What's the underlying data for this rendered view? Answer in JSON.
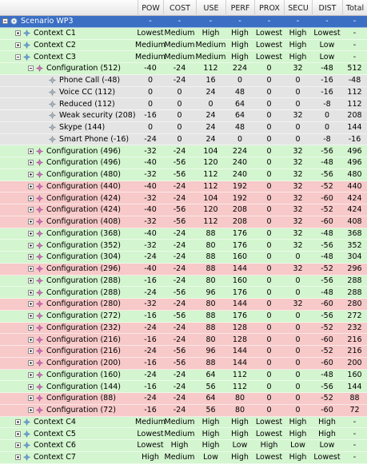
{
  "columns": [
    "POW",
    "COST",
    "USE",
    "PERF",
    "PROX",
    "SECU",
    "DIST",
    "Total"
  ],
  "colors": {
    "green": "#d3f5cf",
    "red": "#f7c9c9",
    "gray": "#e4e4e4",
    "selected": "#3a6fc4"
  },
  "rows": [
    {
      "label": "Scenario WP3",
      "level": 0,
      "exp": "minus",
      "icon": "scenario-icon",
      "bg": "selected",
      "cells": [
        "-",
        "-",
        "-",
        "-",
        "-",
        "-",
        "-",
        "-"
      ]
    },
    {
      "label": "Context C1",
      "level": 1,
      "exp": "plus",
      "icon": "context-icon",
      "bg": "green",
      "cells": [
        "Lowest",
        "Medium",
        "High",
        "High",
        "Lowest",
        "High",
        "Lowest",
        "-"
      ]
    },
    {
      "label": "Context C2",
      "level": 1,
      "exp": "plus",
      "icon": "context-icon",
      "bg": "green",
      "cells": [
        "Medium",
        "Medium",
        "Medium",
        "High",
        "Lowest",
        "High",
        "Low",
        "-"
      ]
    },
    {
      "label": "Context C3",
      "level": 1,
      "exp": "minus",
      "icon": "context-icon",
      "bg": "green",
      "cells": [
        "Medium",
        "Medium",
        "Medium",
        "High",
        "Lowest",
        "High",
        "Low",
        "-"
      ]
    },
    {
      "label": "Configuration (512)",
      "level": 2,
      "exp": "minus",
      "icon": "configuration-icon",
      "bg": "green",
      "cells": [
        "-40",
        "-24",
        "112",
        "224",
        "0",
        "32",
        "-48",
        "512"
      ]
    },
    {
      "label": "Phone Call (-48)",
      "level": 3,
      "exp": "none",
      "icon": "service-icon",
      "bg": "gray",
      "cells": [
        "0",
        "-24",
        "16",
        "0",
        "0",
        "0",
        "-16",
        "-48"
      ]
    },
    {
      "label": "Voice CC (112)",
      "level": 3,
      "exp": "none",
      "icon": "service-icon",
      "bg": "gray",
      "cells": [
        "0",
        "0",
        "24",
        "48",
        "0",
        "0",
        "-16",
        "112"
      ]
    },
    {
      "label": "Reduced (112)",
      "level": 3,
      "exp": "none",
      "icon": "service-icon",
      "bg": "gray",
      "cells": [
        "0",
        "0",
        "0",
        "64",
        "0",
        "0",
        "-8",
        "112"
      ]
    },
    {
      "label": "Weak security (208)",
      "level": 3,
      "exp": "none",
      "icon": "service-icon",
      "bg": "gray",
      "cells": [
        "-16",
        "0",
        "24",
        "64",
        "0",
        "32",
        "0",
        "208"
      ]
    },
    {
      "label": "Skype (144)",
      "level": 3,
      "exp": "none",
      "icon": "service-icon",
      "bg": "gray",
      "cells": [
        "0",
        "0",
        "24",
        "48",
        "0",
        "0",
        "0",
        "144"
      ]
    },
    {
      "label": "Smart Phone (-16)",
      "level": 3,
      "exp": "none",
      "icon": "service-icon",
      "bg": "gray",
      "cells": [
        "-24",
        "0",
        "24",
        "0",
        "0",
        "0",
        "-8",
        "-16"
      ]
    },
    {
      "label": "Configuration (496)",
      "level": 2,
      "exp": "plus",
      "icon": "configuration-icon",
      "bg": "green",
      "cells": [
        "-32",
        "-24",
        "104",
        "224",
        "0",
        "32",
        "-56",
        "496"
      ]
    },
    {
      "label": "Configuration (496)",
      "level": 2,
      "exp": "plus",
      "icon": "configuration-icon",
      "bg": "green",
      "cells": [
        "-40",
        "-56",
        "120",
        "240",
        "0",
        "32",
        "-48",
        "496"
      ]
    },
    {
      "label": "Configuration (480)",
      "level": 2,
      "exp": "plus",
      "icon": "configuration-icon",
      "bg": "green",
      "cells": [
        "-32",
        "-56",
        "112",
        "240",
        "0",
        "32",
        "-56",
        "480"
      ]
    },
    {
      "label": "Configuration (440)",
      "level": 2,
      "exp": "plus",
      "icon": "configuration-icon",
      "bg": "red",
      "cells": [
        "-40",
        "-24",
        "112",
        "192",
        "0",
        "32",
        "-52",
        "440"
      ]
    },
    {
      "label": "Configuration (424)",
      "level": 2,
      "exp": "plus",
      "icon": "configuration-icon",
      "bg": "red",
      "cells": [
        "-32",
        "-24",
        "104",
        "192",
        "0",
        "32",
        "-60",
        "424"
      ]
    },
    {
      "label": "Configuration (424)",
      "level": 2,
      "exp": "plus",
      "icon": "configuration-icon",
      "bg": "red",
      "cells": [
        "-40",
        "-56",
        "120",
        "208",
        "0",
        "32",
        "-52",
        "424"
      ]
    },
    {
      "label": "Configuration (408)",
      "level": 2,
      "exp": "plus",
      "icon": "configuration-icon",
      "bg": "red",
      "cells": [
        "-32",
        "-56",
        "112",
        "208",
        "0",
        "32",
        "-60",
        "408"
      ]
    },
    {
      "label": "Configuration (368)",
      "level": 2,
      "exp": "plus",
      "icon": "configuration-icon",
      "bg": "green",
      "cells": [
        "-40",
        "-24",
        "88",
        "176",
        "0",
        "32",
        "-48",
        "368"
      ]
    },
    {
      "label": "Configuration (352)",
      "level": 2,
      "exp": "plus",
      "icon": "configuration-icon",
      "bg": "green",
      "cells": [
        "-32",
        "-24",
        "80",
        "176",
        "0",
        "32",
        "-56",
        "352"
      ]
    },
    {
      "label": "Configuration (304)",
      "level": 2,
      "exp": "plus",
      "icon": "configuration-icon",
      "bg": "green",
      "cells": [
        "-24",
        "-24",
        "88",
        "160",
        "0",
        "0",
        "-48",
        "304"
      ]
    },
    {
      "label": "Configuration (296)",
      "level": 2,
      "exp": "plus",
      "icon": "configuration-icon",
      "bg": "red",
      "cells": [
        "-40",
        "-24",
        "88",
        "144",
        "0",
        "32",
        "-52",
        "296"
      ]
    },
    {
      "label": "Configuration (288)",
      "level": 2,
      "exp": "plus",
      "icon": "configuration-icon",
      "bg": "green",
      "cells": [
        "-16",
        "-24",
        "80",
        "160",
        "0",
        "0",
        "-56",
        "288"
      ]
    },
    {
      "label": "Configuration (288)",
      "level": 2,
      "exp": "plus",
      "icon": "configuration-icon",
      "bg": "green",
      "cells": [
        "-24",
        "-56",
        "96",
        "176",
        "0",
        "0",
        "-48",
        "288"
      ]
    },
    {
      "label": "Configuration (280)",
      "level": 2,
      "exp": "plus",
      "icon": "configuration-icon",
      "bg": "red",
      "cells": [
        "-32",
        "-24",
        "80",
        "144",
        "0",
        "32",
        "-60",
        "280"
      ]
    },
    {
      "label": "Configuration (272)",
      "level": 2,
      "exp": "plus",
      "icon": "configuration-icon",
      "bg": "green",
      "cells": [
        "-16",
        "-56",
        "88",
        "176",
        "0",
        "0",
        "-56",
        "272"
      ]
    },
    {
      "label": "Configuration (232)",
      "level": 2,
      "exp": "plus",
      "icon": "configuration-icon",
      "bg": "red",
      "cells": [
        "-24",
        "-24",
        "88",
        "128",
        "0",
        "0",
        "-52",
        "232"
      ]
    },
    {
      "label": "Configuration (216)",
      "level": 2,
      "exp": "plus",
      "icon": "configuration-icon",
      "bg": "red",
      "cells": [
        "-16",
        "-24",
        "80",
        "128",
        "0",
        "0",
        "-60",
        "216"
      ]
    },
    {
      "label": "Configuration (216)",
      "level": 2,
      "exp": "plus",
      "icon": "configuration-icon",
      "bg": "red",
      "cells": [
        "-24",
        "-56",
        "96",
        "144",
        "0",
        "0",
        "-52",
        "216"
      ]
    },
    {
      "label": "Configuration (200)",
      "level": 2,
      "exp": "plus",
      "icon": "configuration-icon",
      "bg": "red",
      "cells": [
        "-16",
        "-56",
        "88",
        "144",
        "0",
        "0",
        "-60",
        "200"
      ]
    },
    {
      "label": "Configuration (160)",
      "level": 2,
      "exp": "plus",
      "icon": "configuration-icon",
      "bg": "green",
      "cells": [
        "-24",
        "-24",
        "64",
        "112",
        "0",
        "0",
        "-48",
        "160"
      ]
    },
    {
      "label": "Configuration (144)",
      "level": 2,
      "exp": "plus",
      "icon": "configuration-icon",
      "bg": "green",
      "cells": [
        "-16",
        "-24",
        "56",
        "112",
        "0",
        "0",
        "-56",
        "144"
      ]
    },
    {
      "label": "Configuration (88)",
      "level": 2,
      "exp": "plus",
      "icon": "configuration-icon",
      "bg": "red",
      "cells": [
        "-24",
        "-24",
        "64",
        "80",
        "0",
        "0",
        "-52",
        "88"
      ]
    },
    {
      "label": "Configuration (72)",
      "level": 2,
      "exp": "plus",
      "icon": "configuration-icon",
      "bg": "red",
      "cells": [
        "-16",
        "-24",
        "56",
        "80",
        "0",
        "0",
        "-60",
        "72"
      ]
    },
    {
      "label": "Context C4",
      "level": 1,
      "exp": "plus",
      "icon": "context-icon",
      "bg": "green",
      "cells": [
        "Medium",
        "Medium",
        "High",
        "High",
        "Lowest",
        "High",
        "High",
        "-"
      ]
    },
    {
      "label": "Context C5",
      "level": 1,
      "exp": "plus",
      "icon": "context-icon",
      "bg": "green",
      "cells": [
        "Lowest",
        "Medium",
        "High",
        "High",
        "Lowest",
        "High",
        "High",
        "-"
      ]
    },
    {
      "label": "Context C6",
      "level": 1,
      "exp": "plus",
      "icon": "context-icon",
      "bg": "green",
      "cells": [
        "Lowest",
        "High",
        "High",
        "Low",
        "High",
        "Low",
        "Low",
        "-"
      ]
    },
    {
      "label": "Context C7",
      "level": 1,
      "exp": "plus",
      "icon": "context-icon",
      "bg": "green",
      "cells": [
        "High",
        "Medium",
        "Low",
        "High",
        "Lowest",
        "High",
        "Lowest",
        "-"
      ]
    }
  ]
}
